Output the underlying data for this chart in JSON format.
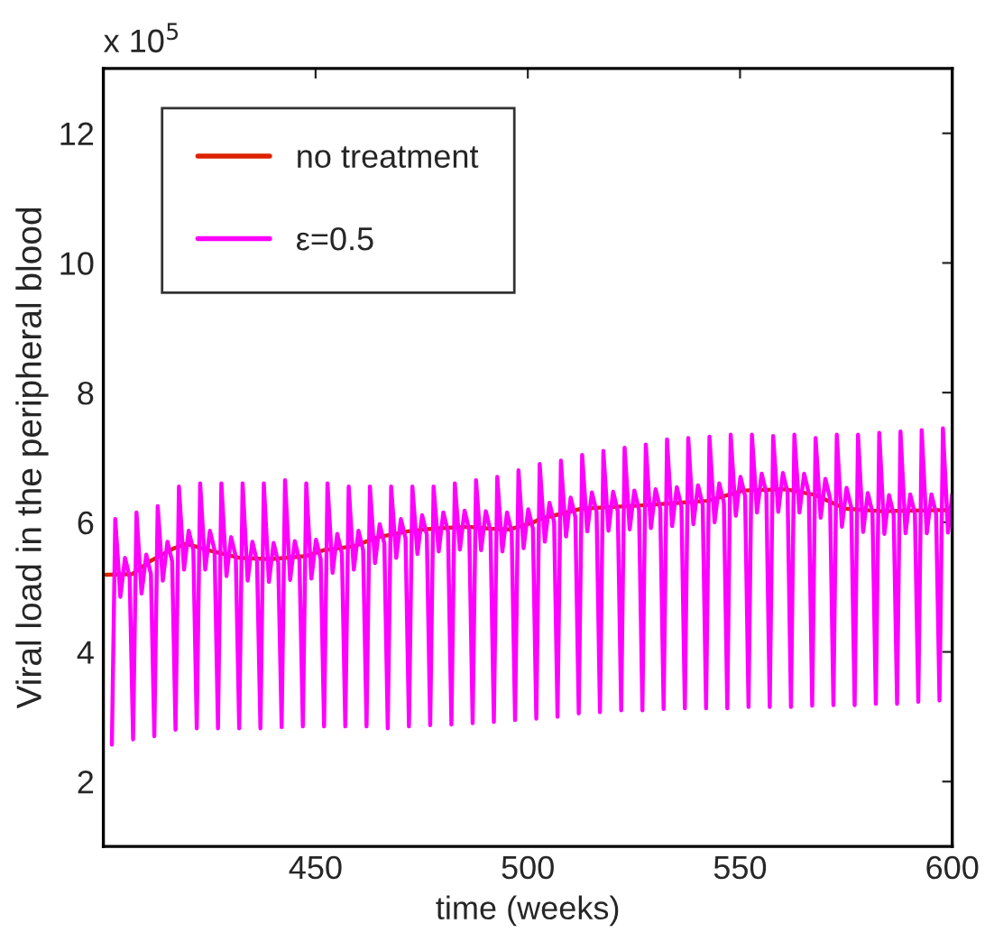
{
  "chart_data": {
    "type": "line",
    "xlabel": "time (weeks)",
    "ylabel": "Viral load in the peripheral blood",
    "annotations": [
      "x 10$^{5}$"
    ],
    "xlim": [
      400,
      600
    ],
    "xticks": [
      450,
      500,
      550,
      600
    ],
    "ylim": [
      1,
      13
    ],
    "yticks": [
      2,
      4,
      6,
      8,
      10,
      12
    ],
    "grid": false,
    "legend": "top left",
    "marker": "none",
    "line_style": "solid",
    "series": [
      {
        "name": "no treatment",
        "color": "#dd2200",
        "x": [
          400.7,
          406.8,
          411.0,
          416.7,
          419.5,
          425.2,
          432.2,
          439.3,
          447.8,
          452.0,
          459.0,
          464.7,
          471.8,
          477.4,
          485.9,
          491.5,
          495.8,
          501.4,
          502.8,
          512.7,
          526.8,
          542.3,
          550.8,
          560.7,
          567.7,
          574.8,
          583.3,
          599.5
        ],
        "values": [
          5.19,
          5.2,
          5.4,
          5.6,
          5.67,
          5.56,
          5.45,
          5.43,
          5.48,
          5.57,
          5.63,
          5.77,
          5.86,
          5.9,
          5.93,
          5.9,
          5.89,
          6.0,
          6.05,
          6.21,
          6.26,
          6.33,
          6.49,
          6.51,
          6.42,
          6.21,
          6.17,
          6.19
        ]
      },
      {
        "name": "ε=0.5",
        "color": "#ff00ff",
        "x": [
          402.0,
          402.8,
          404.0,
          405.1,
          406.2,
          407.0,
          407.8,
          409.0,
          410.1,
          411.2,
          412.0,
          412.8,
          414.0,
          415.1,
          416.2,
          417.0,
          417.8,
          419.0,
          420.1,
          421.2,
          422.0,
          422.8,
          424.0,
          425.1,
          426.2,
          427.0,
          427.8,
          429.0,
          430.1,
          431.2,
          432.0,
          432.8,
          434.0,
          435.1,
          436.2,
          437.0,
          437.8,
          439.0,
          440.1,
          441.2,
          442.0,
          442.8,
          444.0,
          445.1,
          446.2,
          447.0,
          447.8,
          449.0,
          450.1,
          451.2,
          452.0,
          452.8,
          454.0,
          455.1,
          456.2,
          457.0,
          457.8,
          459.0,
          460.1,
          461.2,
          462.0,
          462.8,
          464.0,
          465.1,
          466.2,
          467.0,
          467.8,
          469.0,
          470.1,
          471.2,
          472.0,
          472.8,
          474.0,
          475.1,
          476.2,
          477.0,
          477.8,
          479.0,
          480.1,
          481.2,
          482.0,
          482.8,
          484.0,
          485.1,
          486.2,
          487.0,
          487.8,
          489.0,
          490.1,
          491.2,
          492.0,
          492.8,
          494.0,
          495.1,
          496.2,
          497.0,
          497.8,
          499.0,
          500.1,
          501.2,
          502.0,
          502.8,
          504.0,
          505.1,
          506.2,
          507.0,
          507.8,
          509.0,
          510.1,
          511.2,
          512.0,
          512.8,
          514.0,
          515.1,
          516.2,
          517.0,
          517.8,
          519.0,
          520.1,
          521.2,
          522.0,
          522.8,
          524.0,
          525.1,
          526.2,
          527.0,
          527.8,
          529.0,
          530.1,
          531.2,
          532.0,
          532.8,
          534.0,
          535.1,
          536.2,
          537.0,
          537.8,
          539.0,
          540.1,
          541.2,
          542.0,
          542.8,
          544.0,
          545.1,
          546.2,
          547.0,
          547.8,
          549.0,
          550.1,
          551.2,
          552.0,
          552.8,
          554.0,
          555.1,
          556.2,
          557.0,
          557.8,
          559.0,
          560.1,
          561.2,
          562.0,
          562.8,
          564.0,
          565.1,
          566.2,
          567.0,
          567.8,
          569.0,
          570.1,
          571.2,
          572.0,
          572.8,
          574.0,
          575.1,
          576.2,
          577.0,
          577.8,
          579.0,
          580.1,
          581.2,
          582.0,
          582.8,
          584.0,
          585.1,
          586.2,
          587.0,
          587.8,
          589.0,
          590.1,
          591.2,
          592.0,
          592.8,
          594.0,
          595.1,
          596.2,
          597.0,
          597.8,
          599.0,
          600.0
        ],
        "values": [
          2.57,
          6.05,
          4.85,
          5.45,
          5.15,
          2.65,
          6.15,
          4.9,
          5.5,
          5.2,
          2.7,
          6.25,
          5.1,
          5.7,
          5.4,
          2.8,
          6.55,
          5.27,
          5.87,
          5.57,
          2.82,
          6.6,
          5.27,
          5.87,
          5.57,
          2.82,
          6.6,
          5.17,
          5.77,
          5.47,
          2.82,
          6.6,
          5.1,
          5.7,
          5.4,
          2.82,
          6.6,
          5.08,
          5.68,
          5.38,
          2.84,
          6.65,
          5.11,
          5.71,
          5.41,
          2.85,
          6.6,
          5.13,
          5.73,
          5.43,
          2.85,
          6.6,
          5.22,
          5.82,
          5.52,
          2.85,
          6.55,
          5.27,
          5.87,
          5.57,
          2.85,
          6.55,
          5.37,
          5.97,
          5.67,
          2.82,
          6.55,
          5.45,
          6.05,
          5.75,
          2.85,
          6.55,
          5.51,
          6.11,
          5.81,
          2.87,
          6.55,
          5.55,
          6.15,
          5.85,
          2.88,
          6.6,
          5.58,
          6.18,
          5.88,
          2.9,
          6.65,
          5.57,
          6.17,
          5.87,
          2.92,
          6.7,
          5.55,
          6.15,
          5.85,
          2.95,
          6.8,
          5.6,
          6.2,
          5.9,
          2.97,
          6.9,
          5.7,
          6.3,
          6.0,
          3.0,
          6.95,
          5.78,
          6.38,
          6.08,
          3.05,
          7.04,
          5.86,
          6.46,
          6.16,
          3.07,
          7.1,
          5.87,
          6.47,
          6.17,
          3.1,
          7.15,
          5.89,
          6.49,
          6.19,
          3.1,
          7.2,
          5.91,
          6.51,
          6.21,
          3.12,
          7.28,
          5.94,
          6.54,
          6.24,
          3.13,
          7.3,
          5.97,
          6.57,
          6.27,
          3.13,
          7.32,
          6.0,
          6.6,
          6.3,
          3.13,
          7.35,
          6.1,
          6.7,
          6.4,
          3.15,
          7.35,
          6.15,
          6.75,
          6.45,
          3.15,
          7.33,
          6.16,
          6.76,
          6.46,
          3.15,
          7.35,
          6.15,
          6.75,
          6.45,
          3.17,
          7.3,
          6.07,
          6.67,
          6.37,
          3.18,
          7.35,
          5.93,
          6.53,
          6.23,
          3.18,
          7.35,
          5.85,
          6.45,
          6.15,
          3.2,
          7.38,
          5.82,
          6.42,
          6.12,
          3.2,
          7.4,
          5.83,
          6.43,
          6.13,
          3.23,
          7.42,
          5.83,
          6.43,
          6.13,
          3.25,
          7.45,
          5.84,
          6.44
        ]
      }
    ]
  }
}
